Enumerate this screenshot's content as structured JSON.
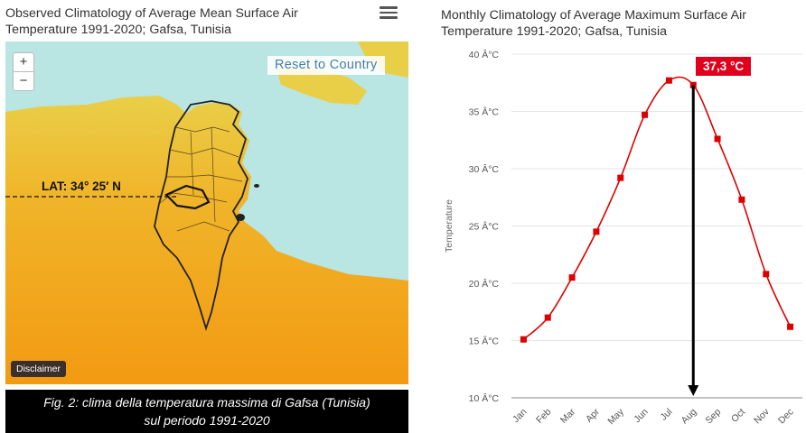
{
  "left_panel": {
    "title_line1": "Observed Climatology of Average Mean Surface Air",
    "title_line2": "Temperature 1991-2020; Gafsa, Tunisia",
    "zoom_in_label": "+",
    "zoom_out_label": "−",
    "reset_label": "Reset to Country",
    "lat_label": "LAT: 34° 25′ N",
    "disclaimer_label": "Disclaimer",
    "caption_line1": "Fig. 2: clima della temperatura massima di Gafsa (Tunisia)",
    "caption_line2": "sul periodo 1991-2020",
    "colors": {
      "sea": "#b7e4e2",
      "land_warm": "#f2a21c",
      "land_mid": "#f0b12a",
      "land_cool": "#e8c841"
    }
  },
  "chart_data": {
    "type": "line",
    "title_line1": "Monthly Climatology of Average Maximum Surface Air",
    "title_line2": "Temperature 1991-2020; Gafsa, Tunisia",
    "ylabel": "Temperature",
    "categories": [
      "Jan",
      "Feb",
      "Mar",
      "Apr",
      "May",
      "Jun",
      "Jul",
      "Aug",
      "Sep",
      "Oct",
      "Nov",
      "Dec"
    ],
    "values": [
      15.1,
      17.0,
      20.5,
      24.5,
      29.2,
      34.7,
      37.7,
      37.3,
      32.6,
      27.3,
      20.8,
      16.2
    ],
    "ylim": [
      10,
      40
    ],
    "yticks": [
      10,
      15,
      20,
      25,
      30,
      35,
      40
    ],
    "ytick_labels": [
      "10 Â°C",
      "15 Â°C",
      "20 Â°C",
      "25 Â°C",
      "30 Â°C",
      "35 Â°C",
      "40 Â°C"
    ],
    "line_color": "#dd0000",
    "grid": "horizontal",
    "annotation": {
      "text": "37,3 °C",
      "month": "Aug",
      "arrow": "down"
    }
  }
}
